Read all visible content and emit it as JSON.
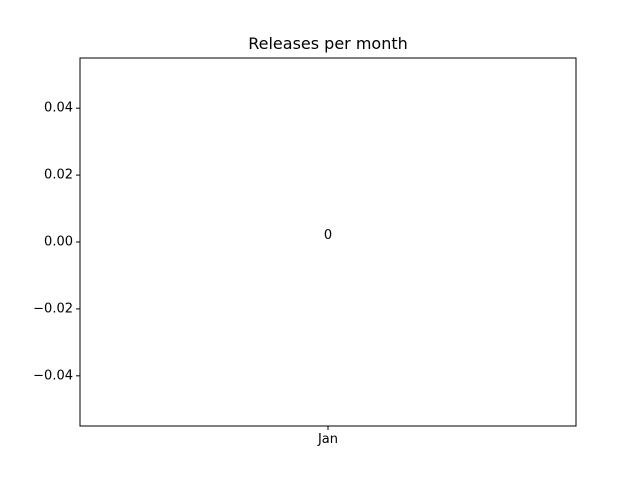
{
  "chart_data": {
    "type": "bar",
    "title": "Releases per month",
    "xlabel": "",
    "ylabel": "",
    "categories": [
      "Jan"
    ],
    "values": [
      0
    ],
    "data_labels": [
      "0"
    ],
    "ylim": [
      -0.055,
      0.055
    ],
    "yticks": [
      -0.04,
      -0.02,
      0.0,
      0.02,
      0.04
    ],
    "ytick_labels": [
      "−0.04",
      "−0.02",
      "0.00",
      "0.02",
      "0.04"
    ],
    "grid": false,
    "legend": "none",
    "colors": {
      "bar": "#1f77b4",
      "axes": "#000000",
      "background": "#ffffff"
    }
  }
}
